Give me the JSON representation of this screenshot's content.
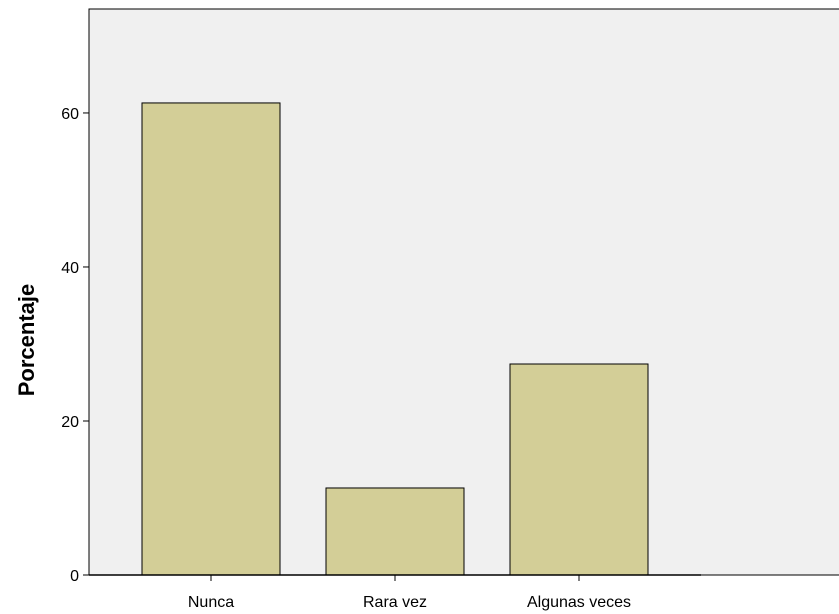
{
  "chart_data": {
    "type": "bar",
    "categories": [
      "Nunca",
      "Rara vez",
      "Algunas veces"
    ],
    "values": [
      61.3,
      11.3,
      27.4
    ],
    "xlabel": "",
    "ylabel": "Porcentaje",
    "ylim": [
      0,
      73.5
    ],
    "yticks": [
      0,
      20,
      40,
      60
    ],
    "grid": false,
    "legend": "none",
    "colors": {
      "plot_background": "#f0f0f0",
      "bar_fill": "#d3ce97",
      "bar_stroke": "#000000"
    }
  }
}
